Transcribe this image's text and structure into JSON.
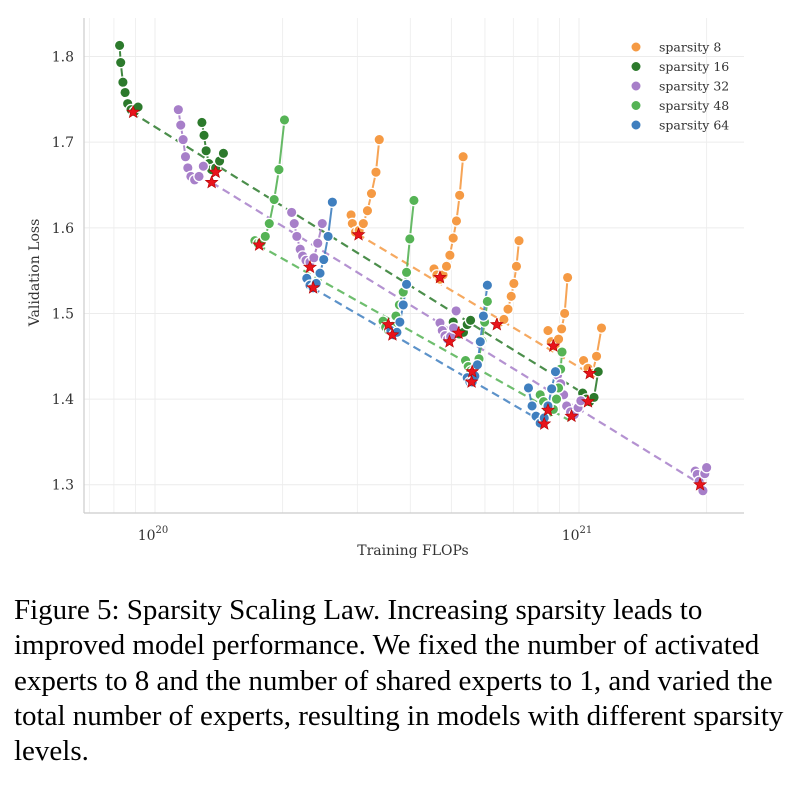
{
  "chart_data": {
    "type": "scatter",
    "title": "",
    "xlabel": "Training FLOPs",
    "ylabel": "Validation Loss",
    "xscale": "log",
    "xlim": [
      6.8e+19,
      2.45e+21
    ],
    "ylim": [
      1.267,
      1.845
    ],
    "xticks": [
      {
        "value": 1e+20,
        "base": "10",
        "exp": "20"
      },
      {
        "value": 1e+21,
        "base": "10",
        "exp": "21"
      }
    ],
    "yticks": [
      {
        "value": 1.3,
        "label": "1.3"
      },
      {
        "value": 1.4,
        "label": "1.4"
      },
      {
        "value": 1.5,
        "label": "1.5"
      },
      {
        "value": 1.6,
        "label": "1.6"
      },
      {
        "value": 1.7,
        "label": "1.7"
      },
      {
        "value": 1.8,
        "label": "1.8"
      }
    ],
    "legend_position": "top-right",
    "series": [
      {
        "name": "sparsity 8",
        "color": "#f59a44",
        "trend": [
          [
            3e+20,
            1.593
          ],
          [
            1.1e+21,
            1.425
          ]
        ],
        "groups": [
          {
            "points": [
              [
                2.9e+20,
                1.615
              ],
              [
                2.92e+20,
                1.605
              ],
              [
                2.97e+20,
                1.595
              ],
              [
                3.03e+20,
                1.597
              ],
              [
                3.1e+20,
                1.605
              ],
              [
                3.17e+20,
                1.62
              ],
              [
                3.24e+20,
                1.64
              ],
              [
                3.32e+20,
                1.665
              ],
              [
                3.38e+20,
                1.703
              ]
            ],
            "optimum": [
              3.02e+20,
              1.592
            ]
          },
          {
            "points": [
              [
                4.55e+20,
                1.552
              ],
              [
                4.62e+20,
                1.545
              ],
              [
                4.7e+20,
                1.54
              ],
              [
                4.78e+20,
                1.545
              ],
              [
                4.87e+20,
                1.555
              ],
              [
                4.96e+20,
                1.568
              ],
              [
                5.05e+20,
                1.588
              ],
              [
                5.14e+20,
                1.608
              ],
              [
                5.23e+20,
                1.638
              ],
              [
                5.33e+20,
                1.683
              ]
            ],
            "optimum": [
              4.7e+20,
              1.542
            ]
          },
          {
            "points": [
              [
                6.5e+20,
                1.49
              ],
              [
                6.65e+20,
                1.493
              ],
              [
                6.8e+20,
                1.505
              ],
              [
                6.92e+20,
                1.52
              ],
              [
                7.02e+20,
                1.535
              ],
              [
                7.12e+20,
                1.555
              ],
              [
                7.22e+20,
                1.585
              ]
            ],
            "optimum": [
              6.4e+20,
              1.487
            ]
          },
          {
            "points": [
              [
                8.45e+20,
                1.48
              ],
              [
                8.6e+20,
                1.467
              ],
              [
                8.78e+20,
                1.462
              ],
              [
                8.95e+20,
                1.47
              ],
              [
                9.1e+20,
                1.482
              ],
              [
                9.25e+20,
                1.5
              ],
              [
                9.4e+20,
                1.542
              ]
            ],
            "optimum": [
              8.7e+20,
              1.462
            ]
          },
          {
            "points": [
              [
                1.025e+21,
                1.445
              ],
              [
                1.05e+21,
                1.436
              ],
              [
                1.075e+21,
                1.43
              ],
              [
                1.1e+21,
                1.45
              ],
              [
                1.13e+21,
                1.483
              ]
            ],
            "optimum": [
              1.06e+21,
              1.43
            ]
          }
        ]
      },
      {
        "name": "sparsity 16",
        "color": "#2c7a2c",
        "trend": [
          [
            8.8e+19,
            1.735
          ],
          [
            1.1e+21,
            1.397
          ]
        ],
        "groups": [
          {
            "points": [
              [
                8.25e+19,
                1.813
              ],
              [
                8.3e+19,
                1.793
              ],
              [
                8.4e+19,
                1.77
              ],
              [
                8.5e+19,
                1.758
              ],
              [
                8.62e+19,
                1.745
              ],
              [
                8.78e+19,
                1.738
              ],
              [
                8.95e+19,
                1.736
              ],
              [
                9.12e+19,
                1.741
              ]
            ],
            "optimum": [
              8.88e+19,
              1.735
            ]
          },
          {
            "points": [
              [
                1.29e+20,
                1.723
              ],
              [
                1.305e+20,
                1.708
              ],
              [
                1.32e+20,
                1.69
              ],
              [
                1.34e+20,
                1.675
              ],
              [
                1.36e+20,
                1.668
              ],
              [
                1.39e+20,
                1.67
              ],
              [
                1.42e+20,
                1.678
              ],
              [
                1.45e+20,
                1.687
              ]
            ],
            "optimum": [
              1.39e+20,
              1.665
            ]
          },
          {
            "points": [
              [
                5.05e+20,
                1.49
              ],
              [
                5.12e+20,
                1.482
              ],
              [
                5.22e+20,
                1.476
              ],
              [
                5.34e+20,
                1.478
              ],
              [
                5.45e+20,
                1.487
              ],
              [
                5.55e+20,
                1.492
              ]
            ],
            "optimum": [
              5.2e+20,
              1.477
            ]
          },
          {
            "points": [
              [
                1.02e+21,
                1.407
              ],
              [
                1.04e+21,
                1.4
              ],
              [
                1.06e+21,
                1.397
              ],
              [
                1.085e+21,
                1.402
              ],
              [
                1.11e+21,
                1.432
              ]
            ],
            "optimum": [
              1.05e+21,
              1.397
            ]
          }
        ]
      },
      {
        "name": "sparsity 32",
        "color": "#a77fc9",
        "trend": [
          [
            1.36e+20,
            1.653
          ],
          [
            1.93e+21,
            1.301
          ]
        ],
        "groups": [
          {
            "points": [
              [
                1.135e+20,
                1.738
              ],
              [
                1.15e+20,
                1.72
              ],
              [
                1.165e+20,
                1.703
              ],
              [
                1.18e+20,
                1.683
              ],
              [
                1.195e+20,
                1.67
              ],
              [
                1.215e+20,
                1.66
              ],
              [
                1.24e+20,
                1.656
              ],
              [
                1.27e+20,
                1.66
              ],
              [
                1.3e+20,
                1.672
              ]
            ],
            "optimum": [
              1.36e+20,
              1.653
            ]
          },
          {
            "points": [
              [
                2.1e+20,
                1.618
              ],
              [
                2.13e+20,
                1.605
              ],
              [
                2.16e+20,
                1.59
              ],
              [
                2.2e+20,
                1.575
              ],
              [
                2.23e+20,
                1.567
              ],
              [
                2.27e+20,
                1.562
              ],
              [
                2.32e+20,
                1.56
              ],
              [
                2.37e+20,
                1.565
              ],
              [
                2.42e+20,
                1.582
              ],
              [
                2.48e+20,
                1.605
              ]
            ],
            "optimum": [
              2.32e+20,
              1.554
            ]
          },
          {
            "points": [
              [
                4.7e+20,
                1.489
              ],
              [
                4.76e+20,
                1.48
              ],
              [
                4.83e+20,
                1.474
              ],
              [
                4.9e+20,
                1.47
              ],
              [
                4.98e+20,
                1.473
              ],
              [
                5.06e+20,
                1.483
              ],
              [
                5.13e+20,
                1.503
              ]
            ],
            "optimum": [
              4.95e+20,
              1.467
            ]
          },
          {
            "points": [
              [
                8.9e+20,
                1.428
              ],
              [
                9.05e+20,
                1.418
              ],
              [
                9.2e+20,
                1.405
              ],
              [
                9.35e+20,
                1.392
              ],
              [
                9.55e+20,
                1.385
              ],
              [
                9.75e+20,
                1.382
              ],
              [
                9.95e+20,
                1.39
              ],
              [
                1.01e+21,
                1.398
              ]
            ],
            "optimum": [
              9.6e+20,
              1.38
            ]
          },
          {
            "points": [
              [
                1.88e+21,
                1.316
              ],
              [
                1.9e+21,
                1.312
              ],
              [
                1.92e+21,
                1.304
              ],
              [
                1.94e+21,
                1.297
              ],
              [
                1.96e+21,
                1.293
              ],
              [
                1.98e+21,
                1.313
              ],
              [
                2e+21,
                1.32
              ]
            ],
            "optimum": [
              1.93e+21,
              1.3
            ]
          }
        ]
      },
      {
        "name": "sparsity 48",
        "color": "#55b355",
        "trend": [
          [
            1.75e+20,
            1.58
          ],
          [
            9.5e+20,
            1.375
          ]
        ],
        "groups": [
          {
            "points": [
              [
                1.72e+20,
                1.585
              ],
              [
                1.75e+20,
                1.582
              ],
              [
                1.78e+20,
                1.583
              ],
              [
                1.82e+20,
                1.59
              ],
              [
                1.86e+20,
                1.605
              ],
              [
                1.91e+20,
                1.633
              ],
              [
                1.96e+20,
                1.668
              ],
              [
                2.02e+20,
                1.726
              ]
            ],
            "optimum": [
              1.76e+20,
              1.58
            ]
          },
          {
            "points": [
              [
                3.45e+20,
                1.491
              ],
              [
                3.5e+20,
                1.484
              ],
              [
                3.56e+20,
                1.48
              ],
              [
                3.63e+20,
                1.485
              ],
              [
                3.7e+20,
                1.497
              ],
              [
                3.77e+20,
                1.51
              ],
              [
                3.85e+20,
                1.525
              ],
              [
                3.92e+20,
                1.548
              ],
              [
                3.99e+20,
                1.587
              ],
              [
                4.08e+20,
                1.632
              ]
            ],
            "optimum": [
              3.55e+20,
              1.487
            ]
          },
          {
            "points": [
              [
                5.4e+20,
                1.445
              ],
              [
                5.48e+20,
                1.438
              ],
              [
                5.56e+20,
                1.433
              ],
              [
                5.64e+20,
                1.432
              ],
              [
                5.72e+20,
                1.438
              ],
              [
                5.81e+20,
                1.447
              ],
              [
                5.9e+20,
                1.468
              ],
              [
                5.99e+20,
                1.49
              ],
              [
                6.08e+20,
                1.514
              ]
            ],
            "optimum": [
              5.6e+20,
              1.432
            ]
          },
          {
            "points": [
              [
                8.1e+20,
                1.405
              ],
              [
                8.25e+20,
                1.397
              ],
              [
                8.4e+20,
                1.39
              ],
              [
                8.55e+20,
                1.385
              ],
              [
                8.7e+20,
                1.388
              ],
              [
                8.85e+20,
                1.4
              ],
              [
                8.95e+20,
                1.413
              ],
              [
                9.05e+20,
                1.435
              ],
              [
                9.12e+20,
                1.455
              ]
            ],
            "optimum": [
              8.45e+20,
              1.387
            ]
          }
        ]
      },
      {
        "name": "sparsity 64",
        "color": "#3f7fbf",
        "trend": [
          [
            2.35e+20,
            1.53
          ],
          [
            8.3e+20,
            1.372
          ]
        ],
        "groups": [
          {
            "points": [
              [
                2.28e+20,
                1.541
              ],
              [
                2.32e+20,
                1.533
              ],
              [
                2.36e+20,
                1.53
              ],
              [
                2.4e+20,
                1.535
              ],
              [
                2.45e+20,
                1.547
              ],
              [
                2.5e+20,
                1.563
              ],
              [
                2.56e+20,
                1.59
              ],
              [
                2.62e+20,
                1.63
              ]
            ],
            "optimum": [
              2.36e+20,
              1.53
            ]
          },
          {
            "points": [
              [
                3.6e+20,
                1.48
              ],
              [
                3.66e+20,
                1.475
              ],
              [
                3.72e+20,
                1.478
              ],
              [
                3.78e+20,
                1.49
              ],
              [
                3.85e+20,
                1.51
              ],
              [
                3.92e+20,
                1.534
              ]
            ],
            "optimum": [
              3.63e+20,
              1.475
            ]
          },
          {
            "points": [
              [
                5.45e+20,
                1.425
              ],
              [
                5.53e+20,
                1.42
              ],
              [
                5.6e+20,
                1.42
              ],
              [
                5.68e+20,
                1.427
              ],
              [
                5.76e+20,
                1.44
              ],
              [
                5.85e+20,
                1.467
              ],
              [
                5.95e+20,
                1.497
              ],
              [
                6.08e+20,
                1.533
              ]
            ],
            "optimum": [
              5.58e+20,
              1.42
            ]
          },
          {
            "points": [
              [
                7.6e+20,
                1.413
              ],
              [
                7.75e+20,
                1.392
              ],
              [
                7.92e+20,
                1.38
              ],
              [
                8.1e+20,
                1.372
              ],
              [
                8.28e+20,
                1.378
              ],
              [
                8.45e+20,
                1.392
              ],
              [
                8.62e+20,
                1.412
              ],
              [
                8.8e+20,
                1.432
              ]
            ],
            "optimum": [
              8.28e+20,
              1.371
            ]
          }
        ]
      }
    ]
  },
  "caption": {
    "text": "Figure 5: Sparsity Scaling Law. Increasing sparsity leads to improved model performance. We fixed the number of activated experts to 8 and the number of shared experts to 1, and varied the total number of experts, resulting in models with different sparsity levels."
  },
  "colors": {
    "optimum_star": "#e8131b",
    "axis": "#cccccc",
    "grid": "#ececec"
  }
}
